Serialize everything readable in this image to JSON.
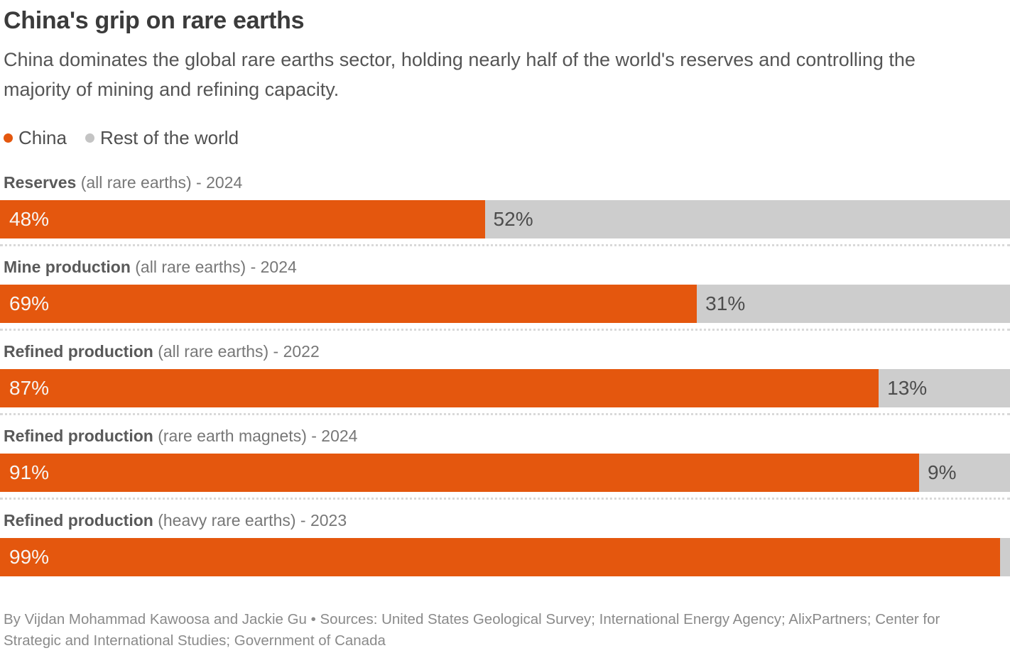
{
  "header": {
    "title": "China's grip on rare earths",
    "subtitle": "China dominates the global rare earths sector, holding nearly half of the world's reserves and controlling the majority of mining and refining capacity."
  },
  "legend": {
    "items": [
      {
        "label": "China",
        "color": "#e4570e"
      },
      {
        "label": "Rest of the world",
        "color": "#c4c4c4"
      }
    ]
  },
  "colors": {
    "china_bar": "#e4570e",
    "rest_bar": "#cdcdcd",
    "value_on_china": "#f7f5f3",
    "value_on_rest": "#4d4d4d"
  },
  "chart_data": {
    "type": "bar",
    "subtype": "horizontal-stacked-100percent",
    "unit": "%",
    "series": [
      "China",
      "Rest of the world"
    ],
    "legend_position": "top-left",
    "grid": false,
    "xlim": [
      0,
      100
    ],
    "rows": [
      {
        "metric": "Reserves",
        "qualifier": "(all rare earths) - 2024",
        "china": 48,
        "rest": 52,
        "china_label": "48%",
        "rest_label": "52%"
      },
      {
        "metric": "Mine production",
        "qualifier": "(all rare earths) - 2024",
        "china": 69,
        "rest": 31,
        "china_label": "69%",
        "rest_label": "31%"
      },
      {
        "metric": "Refined production",
        "qualifier": "(all rare earths) - 2022",
        "china": 87,
        "rest": 13,
        "china_label": "87%",
        "rest_label": "13%"
      },
      {
        "metric": "Refined production",
        "qualifier": "(rare earth magnets) - 2024",
        "china": 91,
        "rest": 9,
        "china_label": "91%",
        "rest_label": "9%"
      },
      {
        "metric": "Refined production",
        "qualifier": "(heavy rare earths) - 2023",
        "china": 99,
        "rest": 1,
        "china_label": "99%",
        "rest_label": ""
      }
    ]
  },
  "footer": {
    "credit": "By Vijdan Mohammad Kawoosa and Jackie Gu • Sources: United States Geological Survey; International Energy Agency; AlixPartners; Center for Strategic and International Studies; Government of Canada"
  }
}
